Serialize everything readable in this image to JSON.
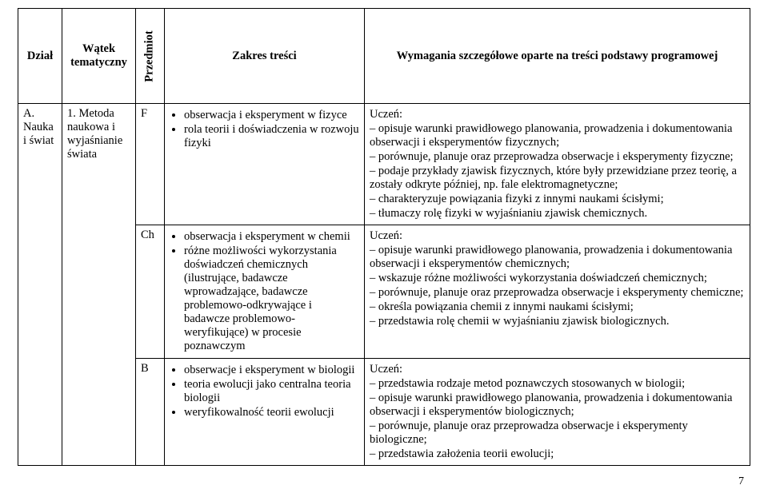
{
  "headers": {
    "dzial": "Dział",
    "watek": "Wątek tematyczny",
    "przedmiot": "Przedmiot",
    "zakres": "Zakres treści",
    "wymagania": "Wymagania szczegółowe oparte na treści podstawy programowej"
  },
  "left": {
    "dzial_line1": "A.",
    "dzial_line2": "Nauka",
    "dzial_line3": "i świat",
    "watek_line1": "1. Metoda",
    "watek_line2": "naukowa i",
    "watek_line3": "wyjaśnianie",
    "watek_line4": "świata"
  },
  "rows": [
    {
      "subject": "F",
      "zakres": [
        "obserwacja i eksperyment w fizyce",
        "rola teorii i doświadczenia w rozwoju fizyki"
      ],
      "req": [
        "Uczeń:",
        "– opisuje warunki prawidłowego planowania, prowadzenia i dokumentowania obserwacji i eksperymentów fizycznych;",
        "– porównuje, planuje oraz przeprowadza obserwacje i eksperymenty fizyczne;",
        "– podaje przykłady zjawisk fizycznych, które były przewidziane przez teorię, a zostały odkryte później, np. fale elektromagnetyczne;",
        "– charakteryzuje powiązania fizyki z innymi naukami ścisłymi;",
        "– tłumaczy rolę fizyki w wyjaśnianiu zjawisk chemicznych."
      ]
    },
    {
      "subject": "Ch",
      "zakres": [
        "obserwacja i eksperyment w chemii",
        "różne możliwości wykorzystania doświadczeń chemicznych (ilustrujące, badawcze wprowadzające, badawcze problemowo-odkrywające i badawcze problemowo-weryfikujące) w procesie poznawczym"
      ],
      "req": [
        "Uczeń:",
        "– opisuje warunki prawidłowego planowania, prowadzenia i dokumentowania obserwacji i eksperymentów chemicznych;",
        "– wskazuje różne możliwości wykorzystania doświadczeń chemicznych;",
        "– porównuje, planuje oraz przeprowadza obserwacje i eksperymenty chemiczne;",
        "– określa powiązania chemii z innymi naukami ścisłymi;",
        "– przedstawia rolę chemii w wyjaśnianiu zjawisk biologicznych."
      ]
    },
    {
      "subject": "B",
      "zakres": [
        "obserwacje i eksperyment w biologii",
        "teoria ewolucji jako centralna teoria biologii",
        "weryfikowalność teorii ewolucji"
      ],
      "req": [
        "Uczeń:",
        "– przedstawia rodzaje metod poznawczych stosowanych w biologii;",
        "– opisuje warunki prawidłowego planowania, prowadzenia i dokumentowania obserwacji i eksperymentów biologicznych;",
        "– porównuje, planuje oraz przeprowadza obserwacje i eksperymenty biologiczne;",
        "– przedstawia założenia teorii ewolucji;"
      ]
    }
  ],
  "page_number": "7"
}
